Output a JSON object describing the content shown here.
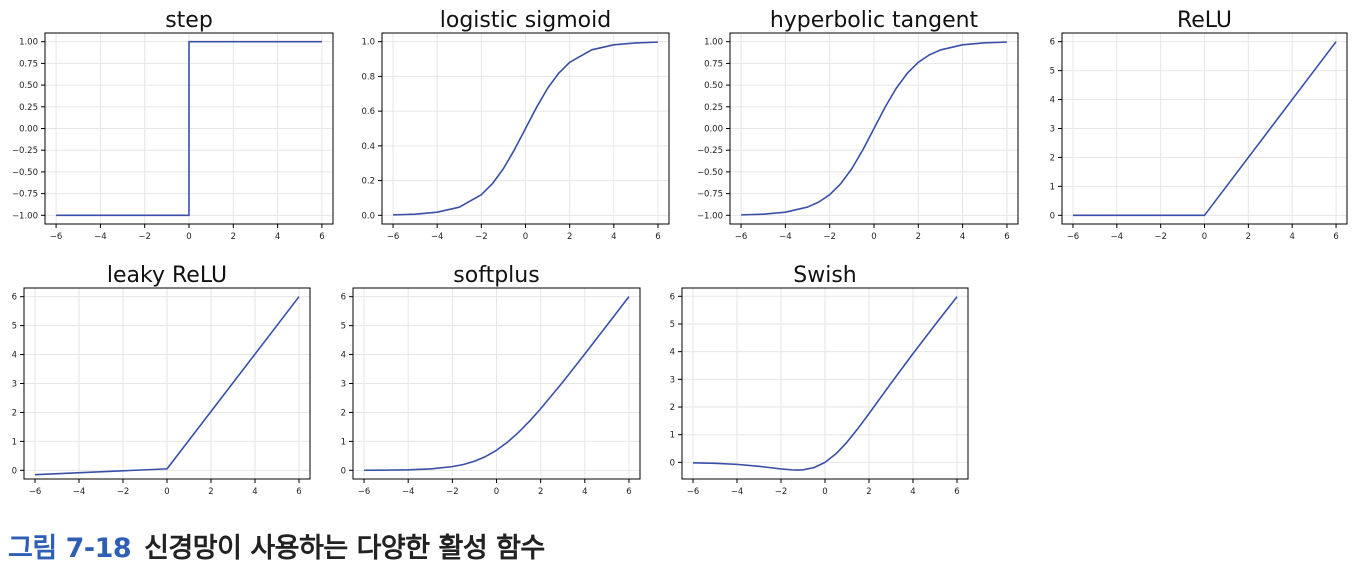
{
  "colors": {
    "line": "#3a4fa8",
    "grid": "#e6e6e6",
    "axis": "#000000"
  },
  "caption": {
    "label": "그림 7-18",
    "text": "신경망이 사용하는 다양한 활성 함수"
  },
  "chart_data": [
    {
      "type": "line",
      "title": "step",
      "xlim": [
        -6.5,
        6.5
      ],
      "ylim": [
        -1.1,
        1.1
      ],
      "xticks": [
        -6,
        -4,
        -2,
        0,
        2,
        4,
        6
      ],
      "yticks": [
        -1.0,
        -0.75,
        -0.5,
        -0.25,
        0.0,
        0.25,
        0.5,
        0.75,
        1.0
      ],
      "ytick_labels": [
        "-1.00",
        "-0.75",
        "-0.50",
        "-0.25",
        "0.00",
        "0.25",
        "0.50",
        "0.75",
        "1.00"
      ],
      "grid": true,
      "series": [
        {
          "x": [
            -6,
            0,
            0,
            6
          ],
          "y": [
            -1,
            -1,
            1,
            1
          ]
        }
      ]
    },
    {
      "type": "line",
      "title": "logistic sigmoid",
      "xlim": [
        -6.5,
        6.5
      ],
      "ylim": [
        -0.05,
        1.05
      ],
      "xticks": [
        -6,
        -4,
        -2,
        0,
        2,
        4,
        6
      ],
      "yticks": [
        0.0,
        0.2,
        0.4,
        0.6,
        0.8,
        1.0
      ],
      "ytick_labels": [
        "0.0",
        "0.2",
        "0.4",
        "0.6",
        "0.8",
        "1.0"
      ],
      "grid": true,
      "series": [
        {
          "x": [
            -6,
            -5,
            -4,
            -3,
            -2,
            -1.5,
            -1,
            -0.5,
            0,
            0.5,
            1,
            1.5,
            2,
            3,
            4,
            5,
            6
          ],
          "y": [
            0.0025,
            0.0067,
            0.018,
            0.047,
            0.119,
            0.182,
            0.269,
            0.378,
            0.5,
            0.622,
            0.731,
            0.818,
            0.881,
            0.953,
            0.982,
            0.993,
            0.9975
          ]
        }
      ]
    },
    {
      "type": "line",
      "title": "hyperbolic tangent",
      "xlim": [
        -6.5,
        6.5
      ],
      "ylim": [
        -1.1,
        1.1
      ],
      "xticks": [
        -6,
        -4,
        -2,
        0,
        2,
        4,
        6
      ],
      "yticks": [
        -1.0,
        -0.75,
        -0.5,
        -0.25,
        0.0,
        0.25,
        0.5,
        0.75,
        1.0
      ],
      "ytick_labels": [
        "-1.00",
        "-0.75",
        "-0.50",
        "-0.25",
        "0.00",
        "0.25",
        "0.50",
        "0.75",
        "1.00"
      ],
      "grid": true,
      "series": [
        {
          "x": [
            -6,
            -5,
            -4,
            -3,
            -2.5,
            -2,
            -1.5,
            -1,
            -0.5,
            0,
            0.5,
            1,
            1.5,
            2,
            2.5,
            3,
            4,
            5,
            6
          ],
          "y": [
            -0.995,
            -0.987,
            -0.964,
            -0.905,
            -0.848,
            -0.762,
            -0.635,
            -0.462,
            -0.245,
            0,
            0.245,
            0.462,
            0.635,
            0.762,
            0.848,
            0.905,
            0.964,
            0.987,
            0.995
          ]
        }
      ]
    },
    {
      "type": "line",
      "title": "ReLU",
      "xlim": [
        -6.5,
        6.5
      ],
      "ylim": [
        -0.3,
        6.3
      ],
      "xticks": [
        -6,
        -4,
        -2,
        0,
        2,
        4,
        6
      ],
      "yticks": [
        0,
        1,
        2,
        3,
        4,
        5,
        6
      ],
      "ytick_labels": [
        "0",
        "1",
        "2",
        "3",
        "4",
        "5",
        "6"
      ],
      "grid": true,
      "series": [
        {
          "x": [
            -6,
            0,
            6
          ],
          "y": [
            0,
            0,
            6
          ]
        }
      ]
    },
    {
      "type": "line",
      "title": "leaky ReLU",
      "xlim": [
        -6.5,
        6.5
      ],
      "ylim": [
        -0.3,
        6.3
      ],
      "xticks": [
        -6,
        -4,
        -2,
        0,
        2,
        4,
        6
      ],
      "yticks": [
        0,
        1,
        2,
        3,
        4,
        5,
        6
      ],
      "ytick_labels": [
        "0",
        "1",
        "2",
        "3",
        "4",
        "5",
        "6"
      ],
      "grid": true,
      "series": [
        {
          "x": [
            -6,
            0,
            6
          ],
          "y": [
            -0.15,
            0.05,
            6
          ]
        }
      ]
    },
    {
      "type": "line",
      "title": "softplus",
      "xlim": [
        -6.5,
        6.5
      ],
      "ylim": [
        -0.3,
        6.3
      ],
      "xticks": [
        -6,
        -4,
        -2,
        0,
        2,
        4,
        6
      ],
      "yticks": [
        0,
        1,
        2,
        3,
        4,
        5,
        6
      ],
      "ytick_labels": [
        "0",
        "1",
        "2",
        "3",
        "4",
        "5",
        "6"
      ],
      "grid": true,
      "series": [
        {
          "x": [
            -6,
            -5,
            -4,
            -3,
            -2,
            -1.5,
            -1,
            -0.5,
            0,
            0.5,
            1,
            1.5,
            2,
            3,
            4,
            5,
            6
          ],
          "y": [
            0.0025,
            0.0067,
            0.018,
            0.049,
            0.127,
            0.201,
            0.313,
            0.474,
            0.693,
            0.974,
            1.313,
            1.701,
            2.127,
            3.049,
            4.018,
            5.007,
            6.002
          ]
        }
      ]
    },
    {
      "type": "line",
      "title": "Swish",
      "xlim": [
        -6.5,
        6.5
      ],
      "ylim": [
        -0.6,
        6.3
      ],
      "xticks": [
        -6,
        -4,
        -2,
        0,
        2,
        4,
        6
      ],
      "yticks": [
        0,
        1,
        2,
        3,
        4,
        5,
        6
      ],
      "ytick_labels": [
        "0",
        "1",
        "2",
        "3",
        "4",
        "5",
        "6"
      ],
      "grid": true,
      "series": [
        {
          "x": [
            -6,
            -5,
            -4,
            -3,
            -2.5,
            -2,
            -1.5,
            -1.25,
            -1,
            -0.5,
            0,
            0.5,
            1,
            1.5,
            2,
            3,
            4,
            5,
            6
          ],
          "y": [
            -0.015,
            -0.033,
            -0.072,
            -0.142,
            -0.189,
            -0.238,
            -0.27,
            -0.278,
            -0.269,
            -0.189,
            0,
            0.311,
            0.731,
            1.227,
            1.762,
            2.858,
            3.928,
            4.967,
            5.985
          ]
        }
      ]
    }
  ]
}
